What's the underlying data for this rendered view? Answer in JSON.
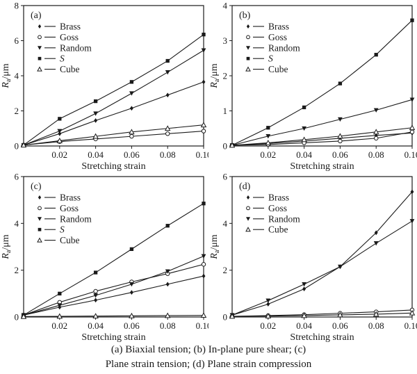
{
  "figure": {
    "caption_line1": "(a) Biaxial tension; (b) In-plane pure shear; (c)",
    "caption_line2": "Plane strain tension; (d) Plane strain compression"
  },
  "colors": {
    "line": "#1a1a1a",
    "background": "#ffffff"
  },
  "chart_data": [
    {
      "type": "line",
      "panel": "(a)",
      "condition": "Biaxial tension",
      "xlabel": "Stretching strain",
      "ylabel_symbol": "R",
      "ylabel_sub": "a",
      "ylabel_unit": "/μm",
      "xlim": [
        0,
        0.1
      ],
      "ylim": [
        0,
        8
      ],
      "xtick_labels": [
        "0.02",
        "0.04",
        "0.06",
        "0.08",
        "0.10"
      ],
      "xticks": [
        0.02,
        0.04,
        0.06,
        0.08,
        0.1
      ],
      "yticks": [
        0,
        2,
        4,
        6,
        8
      ],
      "legend_position": "top-left",
      "grid": false,
      "x": [
        0,
        0.02,
        0.04,
        0.06,
        0.08,
        0.1
      ],
      "series": [
        {
          "name": "Brass",
          "italic": false,
          "marker": "diamond-filled",
          "values": [
            0.05,
            0.7,
            1.45,
            2.15,
            2.9,
            3.65
          ]
        },
        {
          "name": "Goss",
          "italic": false,
          "marker": "circle-open",
          "values": [
            0.05,
            0.25,
            0.4,
            0.55,
            0.7,
            0.85
          ]
        },
        {
          "name": "Random",
          "italic": false,
          "marker": "triangle-down-filled",
          "values": [
            0.05,
            0.85,
            1.85,
            3.0,
            4.2,
            5.45
          ]
        },
        {
          "name": "S",
          "italic": true,
          "marker": "square-filled",
          "values": [
            0.05,
            1.55,
            2.55,
            3.65,
            4.85,
            6.35
          ]
        },
        {
          "name": "Cube",
          "italic": false,
          "marker": "triangle-up-open",
          "values": [
            0.05,
            0.3,
            0.55,
            0.8,
            1.0,
            1.2
          ]
        }
      ]
    },
    {
      "type": "line",
      "panel": "(b)",
      "condition": "In-plane pure shear",
      "xlabel": "Stretching strain",
      "ylabel_symbol": "R",
      "ylabel_sub": "a",
      "ylabel_unit": "/μm",
      "xlim": [
        0,
        0.1
      ],
      "ylim": [
        0,
        4
      ],
      "xtick_labels": [
        "0.02",
        "0.04",
        "0.06",
        "0.08",
        "0.10"
      ],
      "xticks": [
        0.02,
        0.04,
        0.06,
        0.08,
        0.1
      ],
      "yticks": [
        0,
        1,
        2,
        3,
        4
      ],
      "legend_position": "top-left",
      "grid": false,
      "x": [
        0,
        0.02,
        0.04,
        0.06,
        0.08,
        0.1
      ],
      "series": [
        {
          "name": "Brass",
          "italic": false,
          "marker": "diamond-filled",
          "values": [
            0.02,
            0.07,
            0.14,
            0.22,
            0.3,
            0.37
          ]
        },
        {
          "name": "Goss",
          "italic": false,
          "marker": "circle-open",
          "values": [
            0.02,
            0.04,
            0.09,
            0.14,
            0.22,
            0.4
          ]
        },
        {
          "name": "Random",
          "italic": false,
          "marker": "triangle-down-filled",
          "values": [
            0.02,
            0.28,
            0.5,
            0.76,
            1.02,
            1.32
          ]
        },
        {
          "name": "S",
          "italic": true,
          "marker": "square-filled",
          "values": [
            0.02,
            0.52,
            1.1,
            1.78,
            2.6,
            3.58
          ]
        },
        {
          "name": "Cube",
          "italic": false,
          "marker": "triangle-up-open",
          "values": [
            0.02,
            0.09,
            0.18,
            0.28,
            0.4,
            0.52
          ]
        }
      ]
    },
    {
      "type": "line",
      "panel": "(c)",
      "condition": "Plane strain tension",
      "xlabel": "Stretching strain",
      "ylabel_symbol": "R",
      "ylabel_sub": "a",
      "ylabel_unit": "/μm",
      "xlim": [
        0,
        0.1
      ],
      "ylim": [
        0,
        6
      ],
      "xtick_labels": [
        "0.02",
        "0.04",
        "0.06",
        "0.08",
        "0.10"
      ],
      "xticks": [
        0.02,
        0.04,
        0.06,
        0.08,
        0.1
      ],
      "yticks": [
        0,
        2,
        4,
        6
      ],
      "legend_position": "top-left",
      "grid": false,
      "x": [
        0,
        0.02,
        0.04,
        0.06,
        0.08,
        0.1
      ],
      "series": [
        {
          "name": "Brass",
          "italic": false,
          "marker": "diamond-filled",
          "values": [
            0.08,
            0.42,
            0.72,
            1.05,
            1.4,
            1.75
          ]
        },
        {
          "name": "Goss",
          "italic": false,
          "marker": "circle-open",
          "values": [
            0.08,
            0.63,
            1.1,
            1.5,
            1.85,
            2.25
          ]
        },
        {
          "name": "Random",
          "italic": false,
          "marker": "triangle-down-filled",
          "values": [
            0.08,
            0.5,
            0.92,
            1.4,
            1.95,
            2.6
          ]
        },
        {
          "name": "S",
          "italic": true,
          "marker": "square-filled",
          "values": [
            0.08,
            1.0,
            1.9,
            2.9,
            3.9,
            4.85
          ]
        },
        {
          "name": "Cube",
          "italic": false,
          "marker": "triangle-up-open",
          "values": [
            0.02,
            0.03,
            0.04,
            0.05,
            0.06,
            0.07
          ]
        }
      ]
    },
    {
      "type": "line",
      "panel": "(d)",
      "condition": "Plane strain compression",
      "xlabel": "Stretching strain",
      "ylabel_symbol": "R",
      "ylabel_sub": "a",
      "ylabel_unit": "/μm",
      "xlim": [
        0,
        0.1
      ],
      "ylim": [
        0,
        6
      ],
      "xtick_labels": [
        "0.02",
        "0.04",
        "0.06",
        "0.08",
        "0.10"
      ],
      "xticks": [
        0.02,
        0.04,
        0.06,
        0.08,
        0.1
      ],
      "yticks": [
        0,
        2,
        4,
        6
      ],
      "legend_position": "top-left",
      "grid": false,
      "x": [
        0,
        0.02,
        0.04,
        0.06,
        0.08,
        0.1
      ],
      "series": [
        {
          "name": "Brass",
          "italic": false,
          "marker": "diamond-filled",
          "values": [
            0.08,
            0.55,
            1.2,
            2.15,
            3.6,
            5.35
          ]
        },
        {
          "name": "Goss",
          "italic": false,
          "marker": "circle-open",
          "values": [
            0.03,
            0.06,
            0.1,
            0.16,
            0.22,
            0.3
          ]
        },
        {
          "name": "Random",
          "italic": false,
          "marker": "triangle-down-filled",
          "values": [
            0.08,
            0.7,
            1.4,
            2.15,
            3.15,
            4.1
          ]
        },
        {
          "name": "Cube",
          "italic": false,
          "marker": "triangle-up-open",
          "values": [
            0.03,
            0.04,
            0.06,
            0.09,
            0.12,
            0.17
          ]
        }
      ]
    }
  ]
}
